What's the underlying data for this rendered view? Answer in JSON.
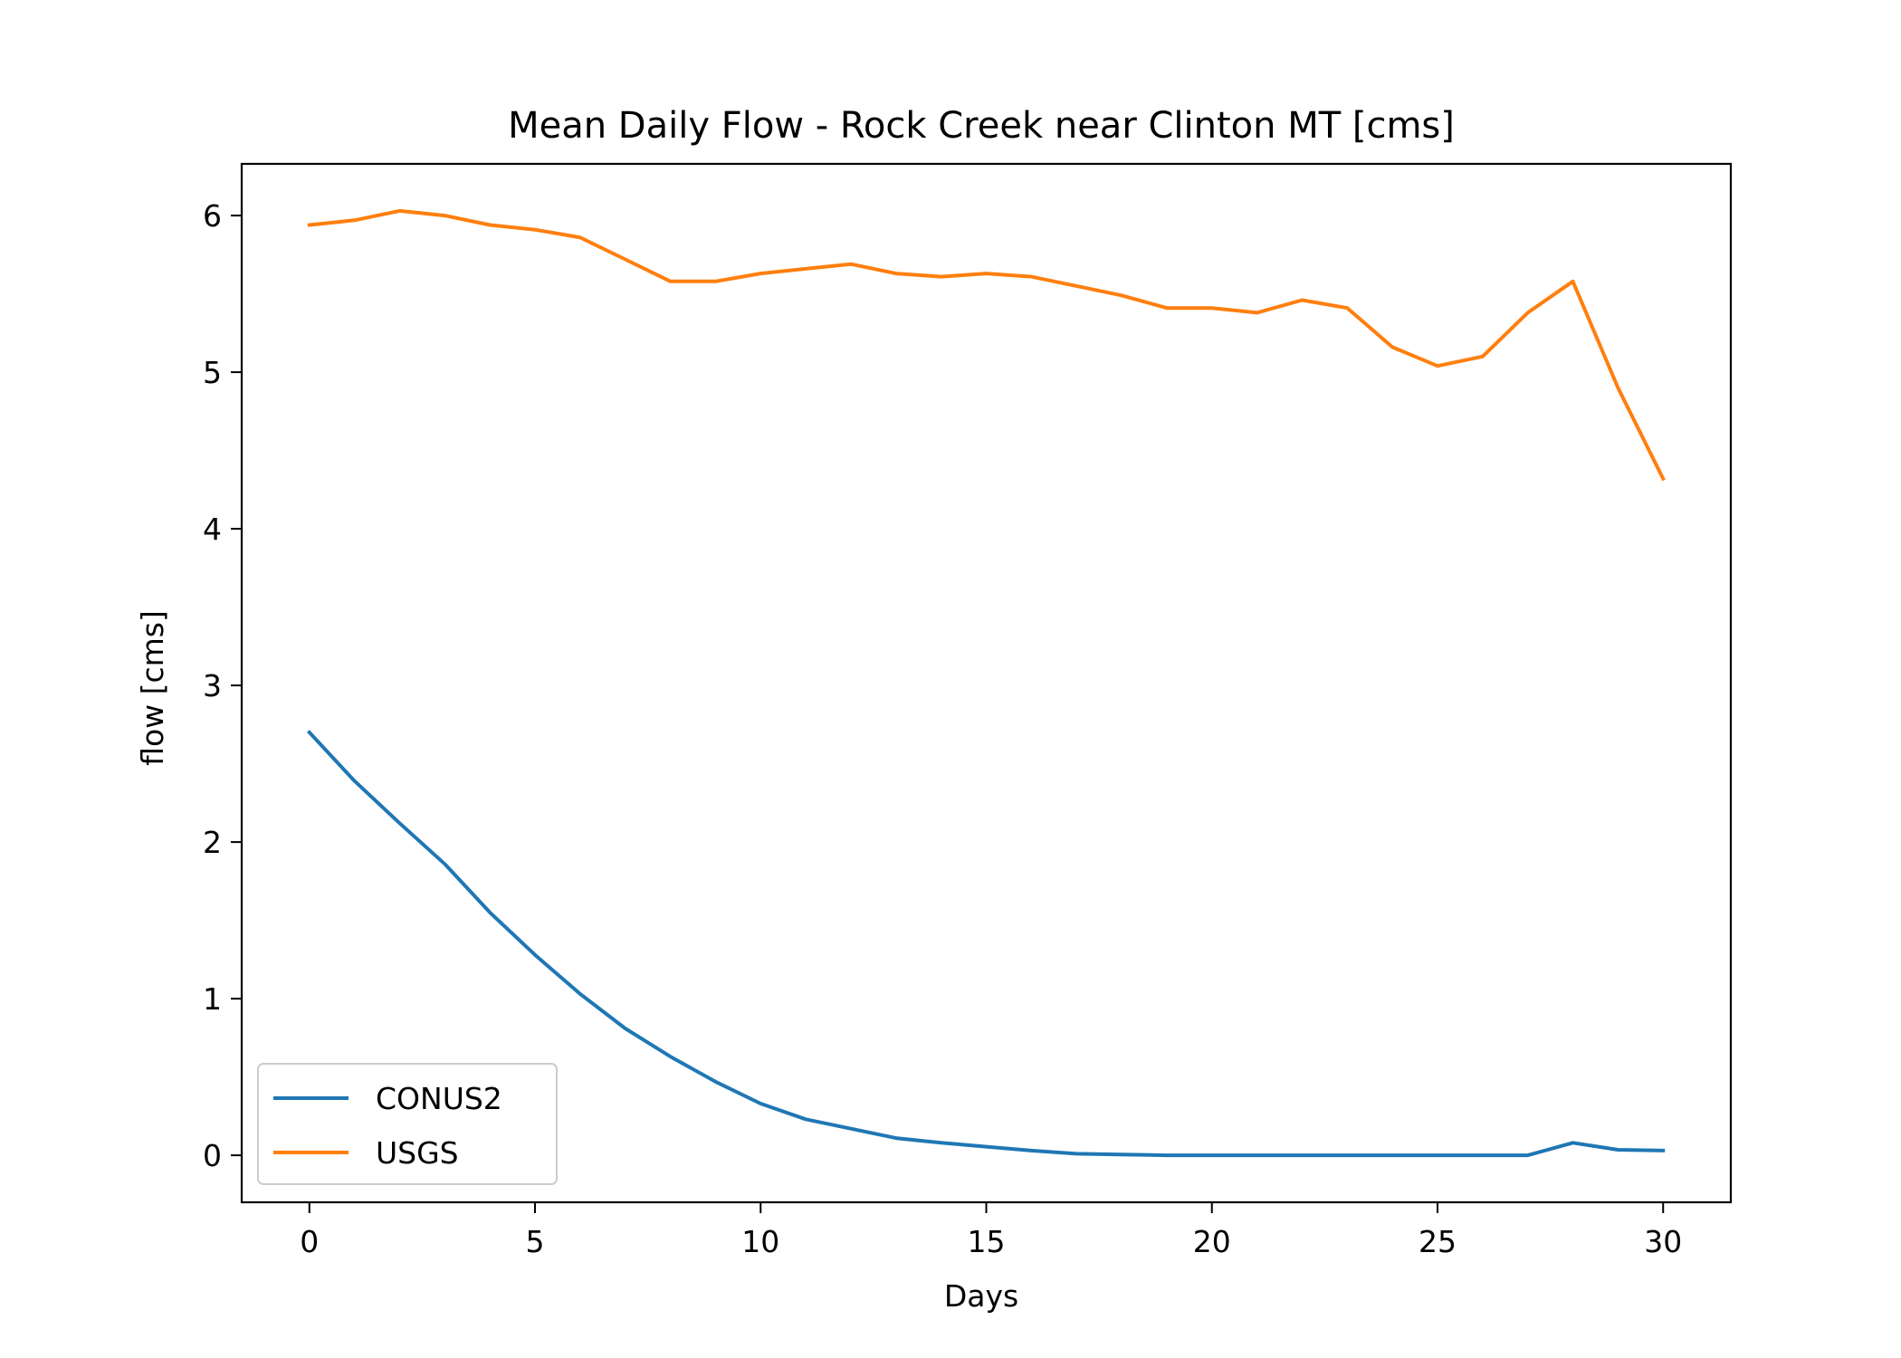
{
  "chart_data": {
    "type": "line",
    "title": "Mean Daily Flow - Rock Creek near Clinton MT [cms]",
    "xlabel": "Days",
    "ylabel": "flow [cms]",
    "xlim": [
      -1.5,
      31.5
    ],
    "ylim": [
      -0.3,
      6.33
    ],
    "xticks": [
      0,
      5,
      10,
      15,
      20,
      25,
      30
    ],
    "yticks": [
      0,
      1,
      2,
      3,
      4,
      5,
      6
    ],
    "grid": false,
    "legend": "lower-left",
    "x": [
      0,
      1,
      2,
      3,
      4,
      5,
      6,
      7,
      8,
      9,
      10,
      11,
      12,
      13,
      14,
      15,
      16,
      17,
      18,
      19,
      20,
      21,
      22,
      23,
      24,
      25,
      26,
      27,
      28,
      29,
      30
    ],
    "series": [
      {
        "name": "CONUS2",
        "color": "#1f77b4",
        "values": [
          2.7,
          2.39,
          2.12,
          1.86,
          1.55,
          1.28,
          1.03,
          0.81,
          0.63,
          0.47,
          0.33,
          0.23,
          0.17,
          0.11,
          0.08,
          0.055,
          0.03,
          0.01,
          0.005,
          0.0,
          0.0,
          0.0,
          0.0,
          0.0,
          0.0,
          0.0,
          0.0,
          0.0,
          0.08,
          0.035,
          0.03
        ]
      },
      {
        "name": "USGS",
        "color": "#ff7f0e",
        "values": [
          5.94,
          5.97,
          6.03,
          6.0,
          5.94,
          5.91,
          5.86,
          5.72,
          5.58,
          5.58,
          5.63,
          5.66,
          5.69,
          5.63,
          5.61,
          5.63,
          5.61,
          5.55,
          5.49,
          5.41,
          5.41,
          5.38,
          5.46,
          5.41,
          5.16,
          5.04,
          5.1,
          5.38,
          5.58,
          4.9,
          4.32
        ]
      }
    ]
  }
}
